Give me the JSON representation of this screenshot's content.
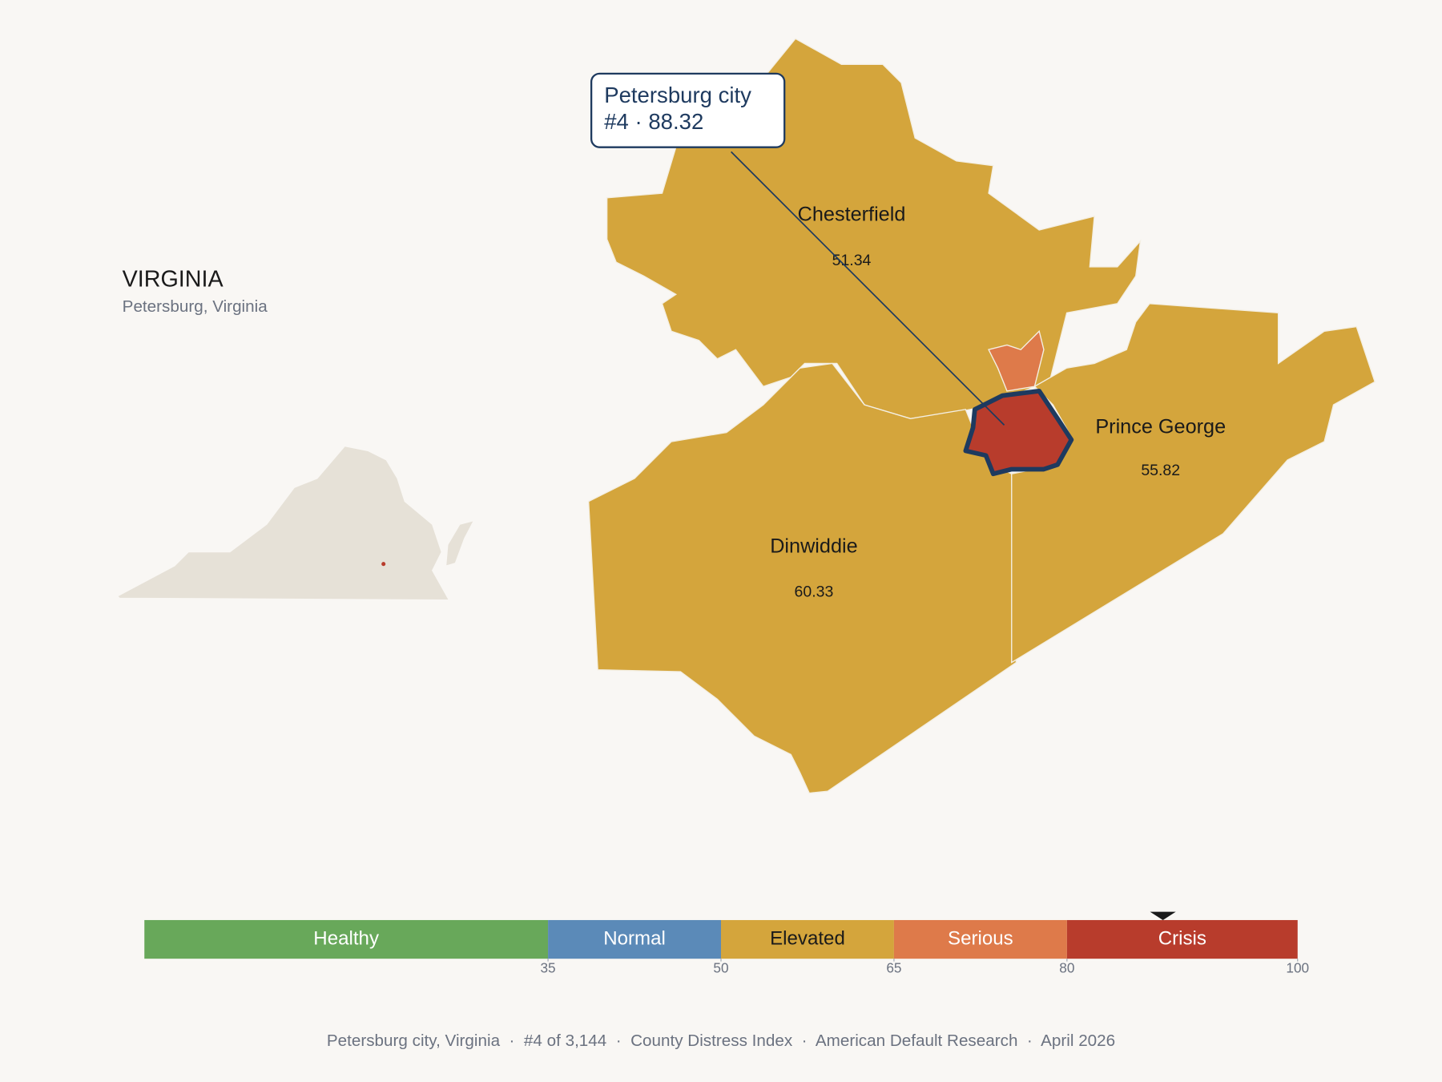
{
  "header": {
    "title": "VIRGINIA",
    "subtitle": "Petersburg, Virginia"
  },
  "callout": {
    "name": "Petersburg city",
    "detail": "#4 · 88.32"
  },
  "counties": [
    {
      "name": "Chesterfield",
      "value": 51.34
    },
    {
      "name": "Dinwiddie",
      "value": 60.33
    },
    {
      "name": "Prince George",
      "value": 55.82
    }
  ],
  "scale": {
    "range": [
      0,
      100
    ],
    "ticks": [
      35,
      50,
      65,
      80,
      100
    ],
    "marker": 88.32,
    "segments": [
      {
        "label": "Healthy",
        "color": "#68a85a",
        "text_color": "#ffffff"
      },
      {
        "label": "Normal",
        "color": "#5b8ab8",
        "text_color": "#ffffff"
      },
      {
        "label": "Elevated",
        "color": "#d4a53c",
        "text_color": "#1a1a1a"
      },
      {
        "label": "Serious",
        "color": "#de7a4a",
        "text_color": "#ffffff"
      },
      {
        "label": "Crisis",
        "color": "#b83c2c",
        "text_color": "#ffffff"
      }
    ]
  },
  "footer": "Petersburg city, Virginia  ·  #4 of 3,144  ·  County Distress Index  ·  American Default Research  ·  April 2026"
}
